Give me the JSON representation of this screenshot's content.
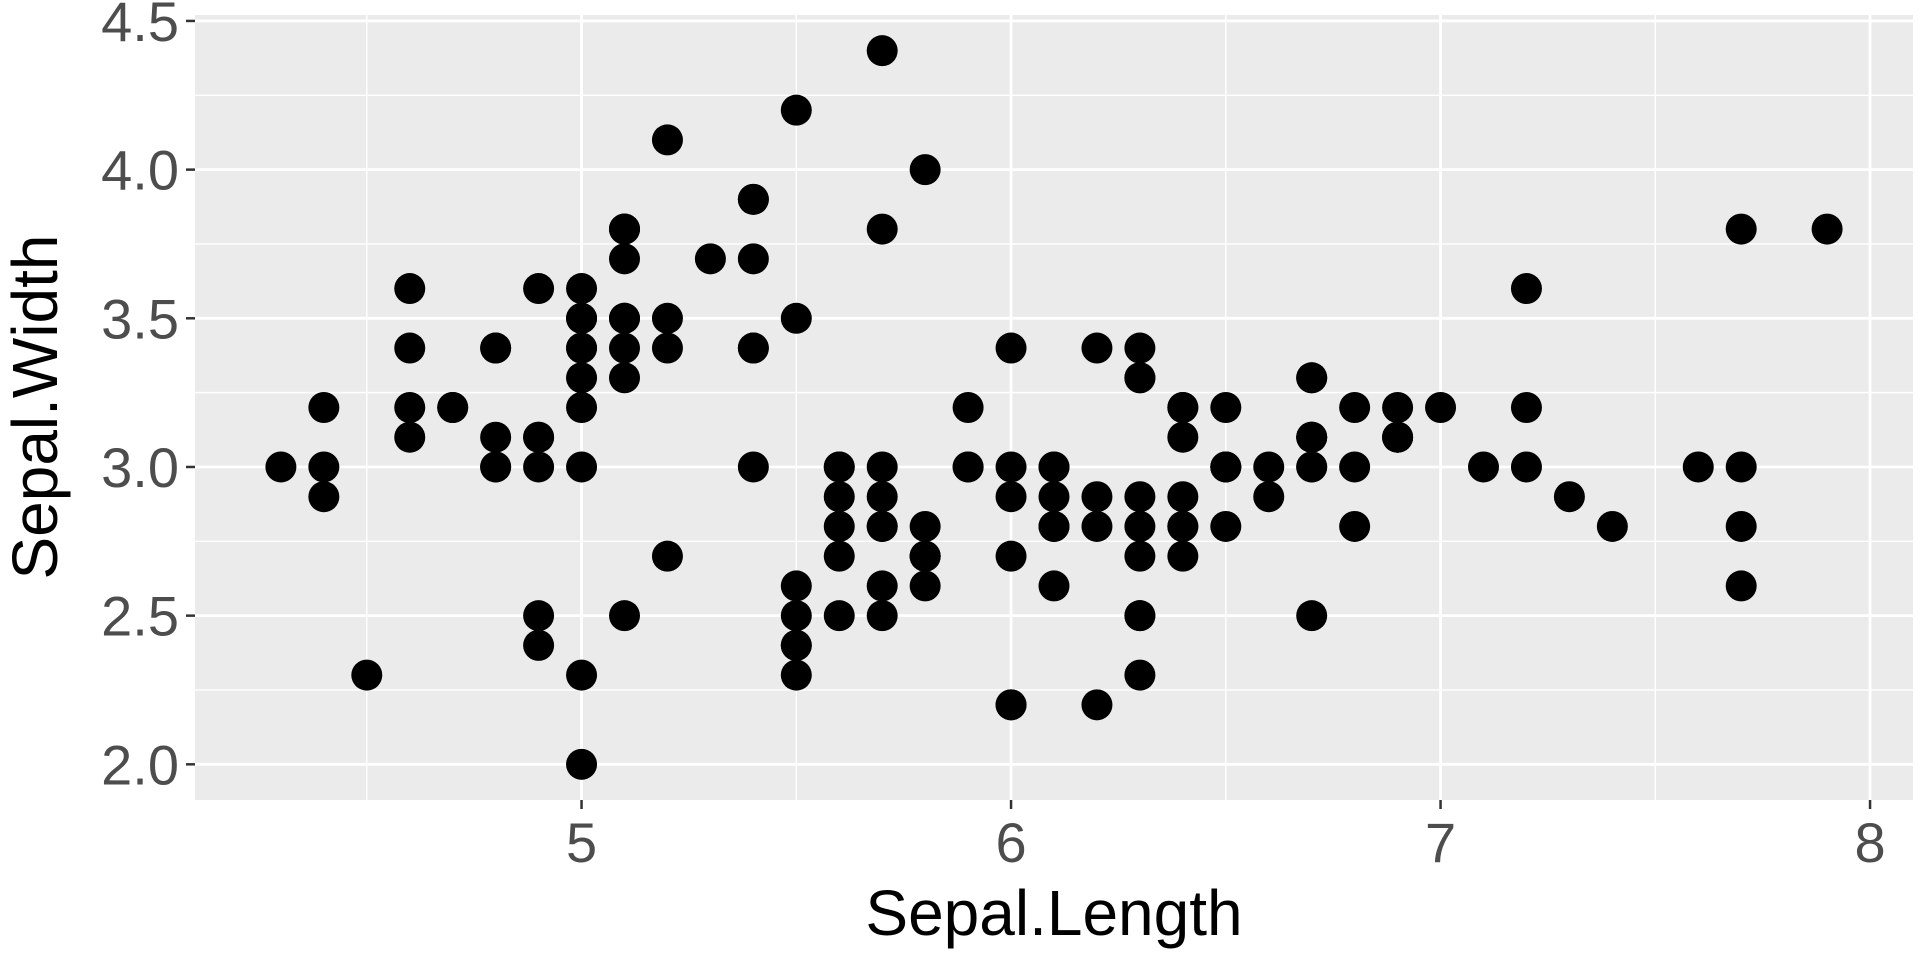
{
  "chart_data": {
    "type": "scatter",
    "title": "",
    "xlabel": "Sepal.Length",
    "ylabel": "Sepal.Width",
    "xlim": [
      4.1,
      8.1
    ],
    "ylim": [
      1.88,
      4.52
    ],
    "x_ticks": [
      5,
      6,
      7,
      8
    ],
    "x_tick_labels": [
      "5",
      "6",
      "7",
      "8"
    ],
    "y_ticks": [
      2.0,
      2.5,
      3.0,
      3.5,
      4.0,
      4.5
    ],
    "y_tick_labels": [
      "2.0",
      "2.5",
      "3.0",
      "3.5",
      "4.0",
      "4.5"
    ],
    "grid": true,
    "legend": "none",
    "colors": {
      "panel": "#ebebeb",
      "grid": "#ffffff",
      "point": "#000000",
      "tick": "#333333"
    },
    "points": [
      [
        5.1,
        3.5
      ],
      [
        4.9,
        3.0
      ],
      [
        4.7,
        3.2
      ],
      [
        4.6,
        3.1
      ],
      [
        5.0,
        3.6
      ],
      [
        5.4,
        3.9
      ],
      [
        4.6,
        3.4
      ],
      [
        5.0,
        3.4
      ],
      [
        4.4,
        2.9
      ],
      [
        4.9,
        3.1
      ],
      [
        5.4,
        3.7
      ],
      [
        4.8,
        3.4
      ],
      [
        4.8,
        3.0
      ],
      [
        4.3,
        3.0
      ],
      [
        5.8,
        4.0
      ],
      [
        5.7,
        4.4
      ],
      [
        5.4,
        3.9
      ],
      [
        5.1,
        3.5
      ],
      [
        5.7,
        3.8
      ],
      [
        5.1,
        3.8
      ],
      [
        5.4,
        3.4
      ],
      [
        5.1,
        3.7
      ],
      [
        4.6,
        3.6
      ],
      [
        5.1,
        3.3
      ],
      [
        4.8,
        3.4
      ],
      [
        5.0,
        3.0
      ],
      [
        5.0,
        3.4
      ],
      [
        5.2,
        3.5
      ],
      [
        5.2,
        3.4
      ],
      [
        4.7,
        3.2
      ],
      [
        4.8,
        3.1
      ],
      [
        5.4,
        3.4
      ],
      [
        5.2,
        4.1
      ],
      [
        5.5,
        4.2
      ],
      [
        4.9,
        3.1
      ],
      [
        5.0,
        3.2
      ],
      [
        5.5,
        3.5
      ],
      [
        4.9,
        3.6
      ],
      [
        4.4,
        3.0
      ],
      [
        5.1,
        3.4
      ],
      [
        5.0,
        3.5
      ],
      [
        4.5,
        2.3
      ],
      [
        4.4,
        3.2
      ],
      [
        5.0,
        3.5
      ],
      [
        5.1,
        3.8
      ],
      [
        4.8,
        3.0
      ],
      [
        5.1,
        3.8
      ],
      [
        4.6,
        3.2
      ],
      [
        5.3,
        3.7
      ],
      [
        5.0,
        3.3
      ],
      [
        7.0,
        3.2
      ],
      [
        6.4,
        3.2
      ],
      [
        6.9,
        3.1
      ],
      [
        5.5,
        2.3
      ],
      [
        6.5,
        2.8
      ],
      [
        5.7,
        2.8
      ],
      [
        6.3,
        3.3
      ],
      [
        4.9,
        2.4
      ],
      [
        6.6,
        2.9
      ],
      [
        5.2,
        2.7
      ],
      [
        5.0,
        2.0
      ],
      [
        5.9,
        3.0
      ],
      [
        6.0,
        2.2
      ],
      [
        6.1,
        2.9
      ],
      [
        5.6,
        2.9
      ],
      [
        6.7,
        3.1
      ],
      [
        5.6,
        3.0
      ],
      [
        5.8,
        2.7
      ],
      [
        6.2,
        2.2
      ],
      [
        5.6,
        2.5
      ],
      [
        5.9,
        3.2
      ],
      [
        6.1,
        2.8
      ],
      [
        6.3,
        2.5
      ],
      [
        6.1,
        2.8
      ],
      [
        6.4,
        2.9
      ],
      [
        6.6,
        3.0
      ],
      [
        6.8,
        2.8
      ],
      [
        6.7,
        3.0
      ],
      [
        6.0,
        2.9
      ],
      [
        5.7,
        2.6
      ],
      [
        5.5,
        2.4
      ],
      [
        5.5,
        2.4
      ],
      [
        5.8,
        2.7
      ],
      [
        6.0,
        2.7
      ],
      [
        5.4,
        3.0
      ],
      [
        6.0,
        3.4
      ],
      [
        6.7,
        3.1
      ],
      [
        6.3,
        2.3
      ],
      [
        5.6,
        3.0
      ],
      [
        5.5,
        2.5
      ],
      [
        5.5,
        2.6
      ],
      [
        6.1,
        3.0
      ],
      [
        5.8,
        2.6
      ],
      [
        5.0,
        2.3
      ],
      [
        5.6,
        2.7
      ],
      [
        5.7,
        3.0
      ],
      [
        5.7,
        2.9
      ],
      [
        6.2,
        2.9
      ],
      [
        5.1,
        2.5
      ],
      [
        5.7,
        2.8
      ],
      [
        6.3,
        3.3
      ],
      [
        5.8,
        2.7
      ],
      [
        7.1,
        3.0
      ],
      [
        6.3,
        2.9
      ],
      [
        6.5,
        3.0
      ],
      [
        7.6,
        3.0
      ],
      [
        4.9,
        2.5
      ],
      [
        7.3,
        2.9
      ],
      [
        6.7,
        2.5
      ],
      [
        7.2,
        3.6
      ],
      [
        6.5,
        3.2
      ],
      [
        6.4,
        2.7
      ],
      [
        6.8,
        3.0
      ],
      [
        5.7,
        2.5
      ],
      [
        5.8,
        2.8
      ],
      [
        6.4,
        3.2
      ],
      [
        6.5,
        3.0
      ],
      [
        7.7,
        3.8
      ],
      [
        7.7,
        2.6
      ],
      [
        6.0,
        2.2
      ],
      [
        6.9,
        3.2
      ],
      [
        5.6,
        2.8
      ],
      [
        7.7,
        2.8
      ],
      [
        6.3,
        2.7
      ],
      [
        6.7,
        3.3
      ],
      [
        7.2,
        3.2
      ],
      [
        6.2,
        2.8
      ],
      [
        6.1,
        3.0
      ],
      [
        6.4,
        2.8
      ],
      [
        7.2,
        3.0
      ],
      [
        7.4,
        2.8
      ],
      [
        7.9,
        3.8
      ],
      [
        6.4,
        2.8
      ],
      [
        6.3,
        2.8
      ],
      [
        6.1,
        2.6
      ],
      [
        7.7,
        3.0
      ],
      [
        6.3,
        3.4
      ],
      [
        6.4,
        3.1
      ],
      [
        6.0,
        3.0
      ],
      [
        6.9,
        3.1
      ],
      [
        6.7,
        3.1
      ],
      [
        6.9,
        3.1
      ],
      [
        5.8,
        2.7
      ],
      [
        6.8,
        3.2
      ],
      [
        6.7,
        3.3
      ],
      [
        6.7,
        3.0
      ],
      [
        6.3,
        2.5
      ],
      [
        6.5,
        3.0
      ],
      [
        6.2,
        3.4
      ],
      [
        5.9,
        3.0
      ]
    ]
  }
}
